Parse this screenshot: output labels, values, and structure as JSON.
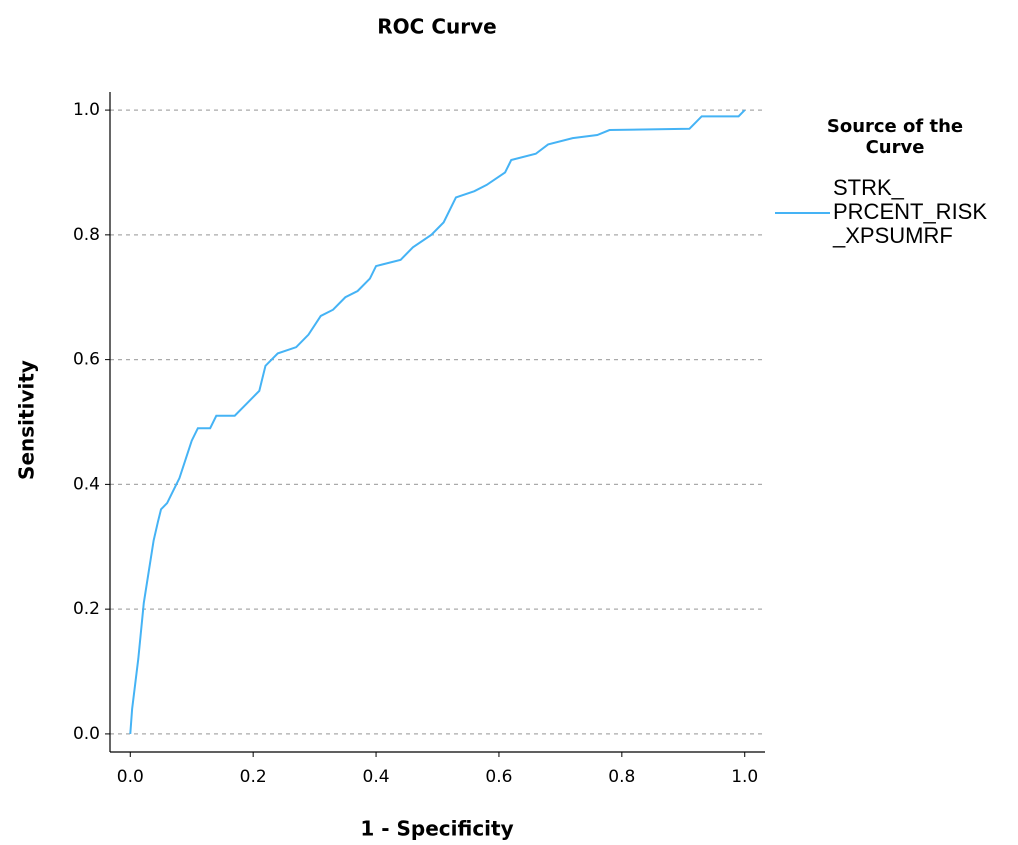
{
  "chart_data": {
    "type": "line",
    "title": "ROC Curve",
    "x_label": "1 - Specificity",
    "y_label": "Sensitivity",
    "legend_title": "Source of the Curve",
    "xlim": [
      -0.033,
      1.033
    ],
    "ylim": [
      -0.029,
      1.029
    ],
    "xticks": [
      {
        "value": 0,
        "label": "0.0"
      },
      0.2,
      0.4,
      0.6,
      0.8,
      {
        "value": 1,
        "label": "1.0"
      }
    ],
    "yticks": [
      {
        "value": 0,
        "label": "0.0"
      },
      0.2,
      0.4,
      0.6,
      0.8,
      {
        "value": 1,
        "label": "1.0"
      }
    ],
    "grid": true,
    "series": [
      {
        "name": "STRK_\nPRCENT_RISK\n_XPSUMRF",
        "color": "#45b3f5",
        "x": [
          0,
          0.003,
          0.008,
          0.013,
          0.018,
          0.022,
          0.03,
          0.038,
          0.045,
          0.05,
          0.06,
          0.07,
          0.08,
          0.09,
          0.1,
          0.11,
          0.13,
          0.14,
          0.17,
          0.19,
          0.2,
          0.21,
          0.22,
          0.24,
          0.27,
          0.29,
          0.31,
          0.33,
          0.35,
          0.37,
          0.39,
          0.4,
          0.44,
          0.46,
          0.49,
          0.51,
          0.53,
          0.56,
          0.58,
          0.61,
          0.62,
          0.66,
          0.68,
          0.72,
          0.76,
          0.78,
          0.91,
          0.93,
          0.99,
          1
        ],
        "values": [
          0,
          0.04,
          0.08,
          0.12,
          0.17,
          0.21,
          0.26,
          0.31,
          0.34,
          0.36,
          0.37,
          0.39,
          0.41,
          0.44,
          0.47,
          0.49,
          0.49,
          0.51,
          0.51,
          0.53,
          0.54,
          0.55,
          0.59,
          0.61,
          0.62,
          0.64,
          0.67,
          0.68,
          0.7,
          0.71,
          0.73,
          0.75,
          0.76,
          0.78,
          0.8,
          0.82,
          0.86,
          0.87,
          0.88,
          0.9,
          0.92,
          0.93,
          0.945,
          0.955,
          0.96,
          0.968,
          0.97,
          0.99,
          0.99,
          1
        ]
      }
    ]
  }
}
